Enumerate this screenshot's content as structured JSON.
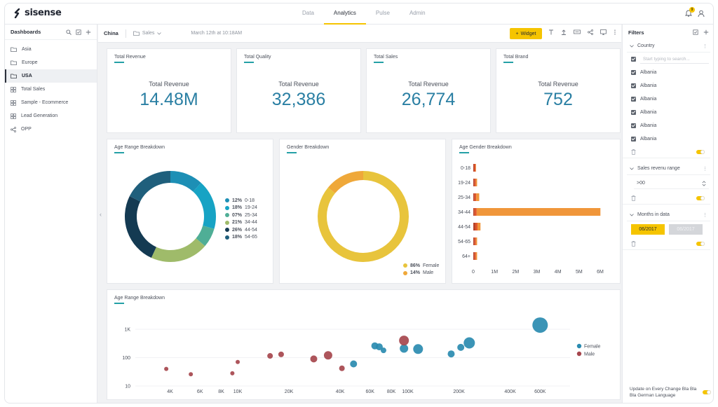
{
  "brand": {
    "logo_text": "sisense",
    "accent": "#f5c400",
    "teal": "#24a0a6"
  },
  "nav": {
    "tabs": [
      "Data",
      "Analytics",
      "Pulse",
      "Admin"
    ],
    "active": "Analytics"
  },
  "notifications": {
    "count": "9"
  },
  "sidebar": {
    "title": "Dashboards",
    "items": [
      {
        "label": "Asia",
        "icon": "folder-icon"
      },
      {
        "label": "Europe",
        "icon": "folder-icon"
      },
      {
        "label": "USA",
        "icon": "folder-icon",
        "active": true
      },
      {
        "label": "Total Sales",
        "icon": "dashboard-icon"
      },
      {
        "label": "Sample - Ecommerce",
        "icon": "dashboard-icon"
      },
      {
        "label": "Lead Generation",
        "icon": "dashboard-icon"
      },
      {
        "label": "OPP",
        "icon": "share-icon"
      }
    ]
  },
  "toolbar": {
    "dashboard_name": "China",
    "folder": "Sales",
    "updated": "March 12th at 10:18AM",
    "widget_label": "Widget"
  },
  "kpis": [
    {
      "title": "Total Revenue",
      "label": "Total Revenue",
      "value": "14.48M"
    },
    {
      "title": "Total Quality",
      "label": "Total Revenue",
      "value": "32,386"
    },
    {
      "title": "Total Sales",
      "label": "Total Revenue",
      "value": "26,774"
    },
    {
      "title": "Total Brand",
      "label": "Total Revenue",
      "value": "752"
    }
  ],
  "chart_data": [
    {
      "type": "pie",
      "title": "Age Range Breakdown",
      "categories": [
        "0-18",
        "19-24",
        "25-34",
        "34-44",
        "44-54",
        "54-65"
      ],
      "values": [
        12,
        18,
        7,
        21,
        26,
        18
      ],
      "labels": [
        "12%",
        "18%",
        "07%",
        "21%",
        "26%",
        "18%"
      ],
      "colors": [
        "#1d8fb5",
        "#17a3c4",
        "#4fae96",
        "#9fbb6a",
        "#143a52",
        "#1f5f7c"
      ],
      "legend": "right"
    },
    {
      "type": "pie",
      "title": "Gender Breakdown",
      "categories": [
        "Female",
        "Male"
      ],
      "values": [
        86,
        14
      ],
      "labels": [
        "86%",
        "14%"
      ],
      "colors": [
        "#e8c43c",
        "#efa83a"
      ],
      "legend": "bottom-right"
    },
    {
      "type": "bar",
      "title": "Age Gender Breakdown",
      "orientation": "horizontal",
      "categories": [
        "0-18",
        "19-24",
        "25-34",
        "34-44",
        "44-54",
        "54-65",
        "64+"
      ],
      "series": [
        {
          "values": [
            0.05,
            0.06,
            0.06,
            0.06,
            0.1,
            0.06,
            0.06
          ],
          "color": "#b8432a"
        },
        {
          "values": [
            0.06,
            0.06,
            0.08,
            0.1,
            0.1,
            0.06,
            0.06
          ],
          "color": "#e2572b"
        },
        {
          "values": [
            0.02,
            0.06,
            0.14,
            5.85,
            0.14,
            0.06,
            0.06
          ],
          "color": "#f0963a"
        }
      ],
      "stacked": true,
      "xticks": [
        "0",
        "1M",
        "2M",
        "3M",
        "4M",
        "5M",
        "6M"
      ],
      "xlim": [
        0,
        6
      ]
    },
    {
      "type": "scatter",
      "title": "Age Range Breakdown",
      "xscale": "log",
      "yscale": "log",
      "xticks": [
        "4K",
        "6K",
        "8K",
        "10K",
        "20K",
        "40K",
        "60K",
        "80K",
        "100K",
        "200K",
        "400K",
        "600K"
      ],
      "xtick_values": [
        4000,
        6000,
        8000,
        10000,
        20000,
        40000,
        60000,
        80000,
        100000,
        200000,
        400000,
        600000
      ],
      "yticks": [
        "1K",
        "100",
        "10"
      ],
      "ytick_values": [
        1000,
        100,
        10
      ],
      "series": [
        {
          "name": "Female",
          "color": "#2a8bb0",
          "points": [
            {
              "x": 48000,
              "y": 60,
              "r": 5
            },
            {
              "x": 64000,
              "y": 260,
              "r": 5
            },
            {
              "x": 68000,
              "y": 240,
              "r": 5
            },
            {
              "x": 72000,
              "y": 180,
              "r": 4
            },
            {
              "x": 95000,
              "y": 210,
              "r": 6
            },
            {
              "x": 115000,
              "y": 200,
              "r": 7
            },
            {
              "x": 180000,
              "y": 135,
              "r": 5
            },
            {
              "x": 205000,
              "y": 230,
              "r": 5
            },
            {
              "x": 230000,
              "y": 330,
              "r": 8
            },
            {
              "x": 600000,
              "y": 1400,
              "r": 11
            }
          ]
        },
        {
          "name": "Male",
          "color": "#a6464d",
          "points": [
            {
              "x": 3800,
              "y": 40,
              "r": 3
            },
            {
              "x": 5300,
              "y": 26,
              "r": 3
            },
            {
              "x": 9300,
              "y": 28,
              "r": 3
            },
            {
              "x": 10000,
              "y": 70,
              "r": 3
            },
            {
              "x": 15500,
              "y": 115,
              "r": 4
            },
            {
              "x": 18000,
              "y": 130,
              "r": 4
            },
            {
              "x": 28000,
              "y": 90,
              "r": 5
            },
            {
              "x": 34000,
              "y": 120,
              "r": 6
            },
            {
              "x": 41000,
              "y": 42,
              "r": 4
            },
            {
              "x": 95000,
              "y": 400,
              "r": 7
            }
          ]
        }
      ],
      "legend": "right"
    }
  ],
  "filters": {
    "title": "Filters",
    "country": {
      "label": "Country",
      "search_placeholder": "Start typing to search...",
      "items": [
        "Albania",
        "Albania",
        "Albania",
        "Albania",
        "Albania",
        "Albania"
      ]
    },
    "sales_range": {
      "label": "Sales revenu range",
      "value": ">00"
    },
    "months": {
      "label": "Months in data",
      "selected": "06/2017",
      "other": "06/2017"
    },
    "footer": "Update on Every Change Bla Bla Bla German Language"
  }
}
